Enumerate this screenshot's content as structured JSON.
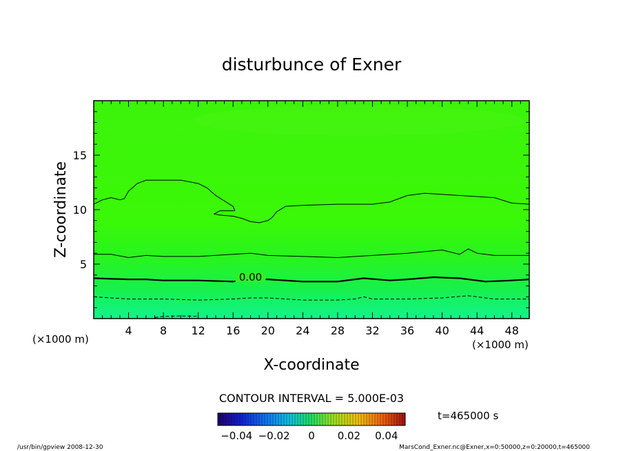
{
  "chart_data": {
    "type": "contour",
    "title": "disturbunce of Exner",
    "xlabel": "X-coordinate",
    "ylabel": "Z-coordinate",
    "x_unit": "(×1000 m)",
    "y_unit": "(×1000 m)",
    "xlim": [
      0,
      50
    ],
    "ylim": [
      0,
      20
    ],
    "x_ticks": [
      4,
      8,
      12,
      16,
      20,
      24,
      28,
      32,
      36,
      40,
      44,
      48
    ],
    "y_ticks": [
      5,
      10,
      15
    ],
    "contour_interval_label": "CONTOUR INTERVAL = 5.000E-03",
    "time_label": "t=465000 s",
    "colorbar_ticks": [
      "−0.04",
      "−0.02",
      "0",
      "0.02",
      "0.04"
    ],
    "colorbar_range": [
      -0.05,
      0.05
    ],
    "contours": [
      {
        "level": -0.01,
        "style": "dashed",
        "label": "",
        "points": [
          [
            0,
            2.0
          ],
          [
            4,
            1.8
          ],
          [
            8,
            1.8
          ],
          [
            12,
            1.7
          ],
          [
            16,
            1.8
          ],
          [
            18,
            1.9
          ],
          [
            20,
            1.9
          ],
          [
            24,
            1.7
          ],
          [
            28,
            1.7
          ],
          [
            30,
            1.8
          ],
          [
            31,
            2.0
          ],
          [
            32,
            1.8
          ],
          [
            36,
            1.8
          ],
          [
            40,
            1.9
          ],
          [
            43,
            2.1
          ],
          [
            46,
            1.8
          ],
          [
            50,
            1.8
          ]
        ]
      },
      {
        "level": -0.005,
        "style": "dashed",
        "label": "",
        "points": [
          [
            7,
            0.1
          ],
          [
            8,
            0.2
          ],
          [
            10,
            0.25
          ],
          [
            12,
            0.2
          ]
        ]
      },
      {
        "level": 0.0,
        "style": "bold",
        "label": "0.00",
        "points": [
          [
            0,
            3.7
          ],
          [
            4,
            3.6
          ],
          [
            6,
            3.6
          ],
          [
            8,
            3.5
          ],
          [
            12,
            3.5
          ],
          [
            16,
            3.4
          ],
          [
            18,
            3.6
          ],
          [
            20,
            3.6
          ],
          [
            24,
            3.4
          ],
          [
            28,
            3.4
          ],
          [
            31,
            3.7
          ],
          [
            34,
            3.5
          ],
          [
            36,
            3.6
          ],
          [
            39,
            3.8
          ],
          [
            42,
            3.7
          ],
          [
            45,
            3.4
          ],
          [
            48,
            3.5
          ],
          [
            50,
            3.6
          ]
        ]
      },
      {
        "level": 0.005,
        "style": "thin",
        "label": "",
        "points": [
          [
            0,
            5.9
          ],
          [
            2,
            5.9
          ],
          [
            4,
            5.6
          ],
          [
            6,
            5.8
          ],
          [
            8,
            5.7
          ],
          [
            12,
            5.7
          ],
          [
            16,
            5.9
          ],
          [
            18,
            6.0
          ],
          [
            20,
            5.8
          ],
          [
            24,
            5.7
          ],
          [
            28,
            5.6
          ],
          [
            32,
            5.8
          ],
          [
            36,
            6.0
          ],
          [
            40,
            6.3
          ],
          [
            41,
            6.1
          ],
          [
            42,
            5.9
          ],
          [
            43,
            6.4
          ],
          [
            44,
            6.0
          ],
          [
            46,
            5.8
          ],
          [
            50,
            5.8
          ]
        ]
      },
      {
        "level": 0.01,
        "style": "thin",
        "label": "",
        "points": [
          [
            0,
            10.5
          ],
          [
            1,
            10.9
          ],
          [
            2,
            11.1
          ],
          [
            3,
            10.9
          ],
          [
            3.5,
            11.0
          ],
          [
            4,
            11.7
          ],
          [
            5,
            12.4
          ],
          [
            6,
            12.7
          ],
          [
            8,
            12.7
          ],
          [
            10,
            12.7
          ],
          [
            12,
            12.4
          ],
          [
            13,
            12.0
          ],
          [
            14,
            11.3
          ],
          [
            15,
            10.8
          ],
          [
            16,
            10.3
          ],
          [
            16.2,
            9.9
          ],
          [
            14.5,
            9.9
          ],
          [
            13.8,
            9.6
          ],
          [
            14.5,
            9.5
          ],
          [
            16,
            9.4
          ],
          [
            17,
            9.2
          ],
          [
            18,
            8.9
          ],
          [
            19,
            8.8
          ],
          [
            20,
            9.0
          ],
          [
            20.5,
            9.3
          ],
          [
            21,
            9.8
          ],
          [
            22,
            10.3
          ],
          [
            24,
            10.4
          ],
          [
            28,
            10.5
          ],
          [
            32,
            10.5
          ],
          [
            34,
            10.7
          ],
          [
            36,
            11.3
          ],
          [
            38,
            11.5
          ],
          [
            40,
            11.4
          ],
          [
            42,
            11.3
          ],
          [
            46,
            11.1
          ],
          [
            48,
            10.6
          ],
          [
            50,
            10.5
          ]
        ]
      }
    ],
    "shading": "green field; lighter cyan-green toward the bottom (positive values), yellow-green upper region"
  },
  "footer": {
    "left": "/usr/bin/gpview   2008-12-30",
    "right": "MarsCond_Exner.nc@Exner,x=0:50000,z=0:20000,t=465000"
  }
}
